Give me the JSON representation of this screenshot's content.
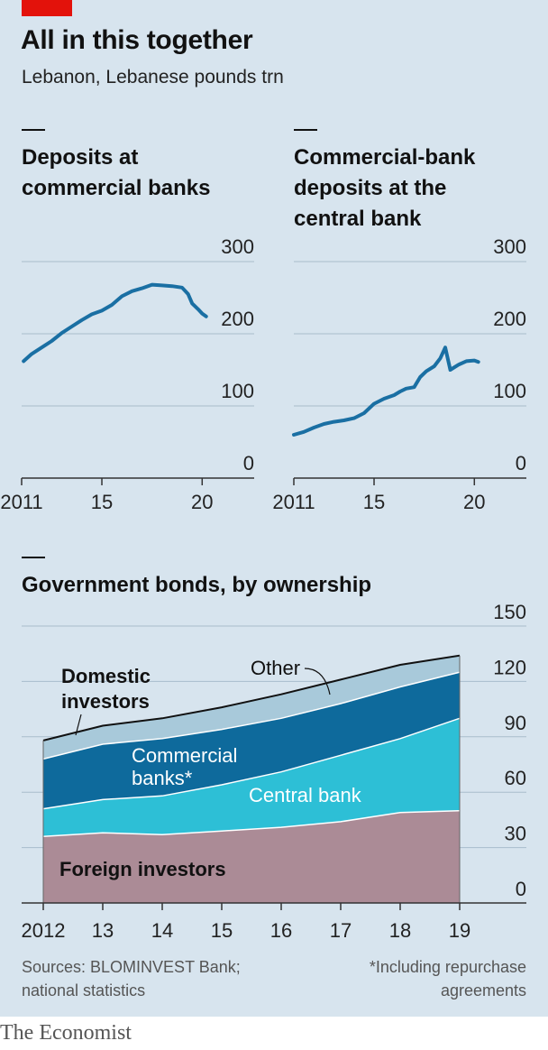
{
  "header": {
    "title": "All in this together",
    "subtitle": "Lebanon, Lebanese pounds trn"
  },
  "chart_data": [
    {
      "type": "line",
      "title": [
        "Deposits at",
        "commercial banks"
      ],
      "ylim": [
        0,
        300
      ],
      "yticks": [
        0,
        100,
        200,
        300
      ],
      "xlim": [
        2011,
        2021.2
      ],
      "xticks": [
        2011,
        2015,
        2020
      ],
      "xtick_labels": [
        "2011",
        "15",
        "20"
      ],
      "color": "#1a6fa3",
      "x": [
        2011.1,
        2011.5,
        2012.0,
        2012.5,
        2013.0,
        2013.5,
        2014.0,
        2014.5,
        2015.0,
        2015.5,
        2016.0,
        2016.5,
        2017.0,
        2017.5,
        2018.0,
        2018.5,
        2019.0,
        2019.3,
        2019.5,
        2019.8,
        2020.0,
        2020.2
      ],
      "values": [
        162,
        172,
        181,
        190,
        201,
        210,
        219,
        227,
        232,
        240,
        252,
        259,
        263,
        268,
        267,
        266,
        264,
        255,
        242,
        234,
        228,
        224
      ]
    },
    {
      "type": "line",
      "title": [
        "Commercial-bank",
        "deposits at the",
        "central bank"
      ],
      "ylim": [
        0,
        300
      ],
      "yticks": [
        0,
        100,
        200,
        300
      ],
      "xlim": [
        2011,
        2021.2
      ],
      "xticks": [
        2011,
        2015,
        2020
      ],
      "xtick_labels": [
        "2011",
        "15",
        "20"
      ],
      "color": "#1a6fa3",
      "x": [
        2011.0,
        2011.5,
        2012.0,
        2012.5,
        2013.0,
        2013.5,
        2014.0,
        2014.5,
        2015.0,
        2015.5,
        2016.0,
        2016.3,
        2016.6,
        2017.0,
        2017.3,
        2017.6,
        2018.0,
        2018.3,
        2018.55,
        2018.8,
        2019.2,
        2019.6,
        2020.0,
        2020.2
      ],
      "values": [
        60,
        64,
        70,
        75,
        78,
        80,
        83,
        90,
        103,
        110,
        115,
        120,
        124,
        126,
        140,
        148,
        155,
        166,
        181,
        150,
        157,
        162,
        163,
        161
      ]
    },
    {
      "type": "area",
      "title": "Government bonds, by ownership",
      "categories": [
        "2012",
        "13",
        "14",
        "15",
        "16",
        "17",
        "18",
        "19"
      ],
      "x": [
        2012,
        2013,
        2014,
        2015,
        2016,
        2017,
        2018,
        2019
      ],
      "ylim": [
        0,
        150
      ],
      "yticks": [
        0,
        30,
        60,
        90,
        120,
        150
      ],
      "series": [
        {
          "name": "Foreign investors",
          "color": "#ab8b96",
          "values": [
            36,
            38,
            37,
            39,
            41,
            44,
            49,
            50
          ]
        },
        {
          "name": "Central bank",
          "color": "#2dbfd6",
          "values": [
            15,
            18,
            21,
            25,
            30,
            36,
            40,
            50
          ]
        },
        {
          "name": "Commercial banks*",
          "color": "#0e6a9c",
          "values": [
            27,
            30,
            31,
            30,
            29,
            28,
            28,
            25
          ]
        },
        {
          "name": "Other",
          "color": "#a8c9da",
          "values": [
            10,
            10,
            11,
            12,
            13,
            13,
            12,
            9
          ]
        }
      ],
      "labels": {
        "domestic": [
          "Domestic",
          "investors"
        ],
        "commercial": [
          "Commercial",
          "banks*"
        ],
        "central": "Central bank",
        "foreign": "Foreign investors",
        "other": "Other"
      }
    }
  ],
  "footer": {
    "sources": [
      "Sources: BLOMINVEST Bank;",
      "national statistics"
    ],
    "note": [
      "*Including repurchase",
      "agreements"
    ],
    "logo": "The Economist"
  }
}
